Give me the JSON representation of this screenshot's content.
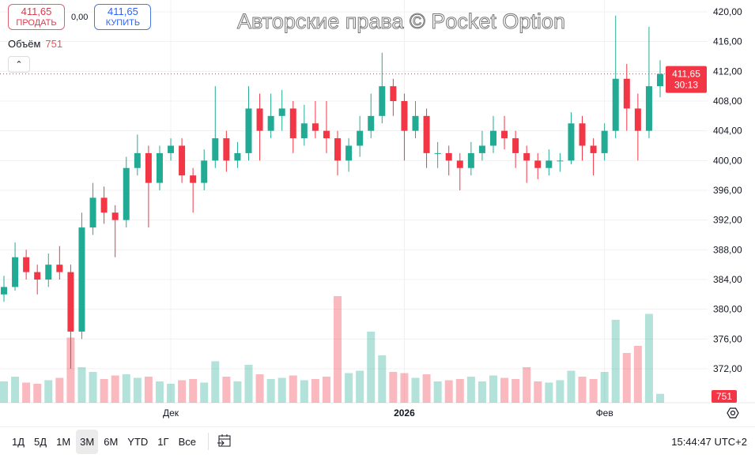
{
  "legend": {
    "sell_price": "411,65",
    "sell_label": "ПРОДАТЬ",
    "spread": "0,00",
    "buy_price": "411,65",
    "buy_label": "КУПИТЬ",
    "volume_label": "Объём",
    "volume_value": "751"
  },
  "colors": {
    "up": "#22ab94",
    "down": "#f23645",
    "price_line": "#f23645"
  },
  "icons": {
    "collapse": "chevron-up-icon",
    "settings": "hexagon-settings-icon",
    "goto_date": "calendar-arrow-icon"
  },
  "toolbar": {
    "timeframes": [
      "1Д",
      "5Д",
      "1М",
      "3М",
      "6М",
      "YTD",
      "1Г",
      "Все"
    ],
    "active": "3М",
    "timezone": "15:44:47 UTC+2"
  },
  "watermark": "Авторские права © Pocket Option",
  "chart_data": {
    "type": "candlestick",
    "ylim": [
      370,
      421
    ],
    "y_ticks": [
      "420,00",
      "416,00",
      "412,00",
      "408,00",
      "404,00",
      "400,00",
      "396,00",
      "392,00",
      "388,00",
      "384,00",
      "380,00",
      "376,00",
      "372,00"
    ],
    "y_tick_values": [
      420,
      416,
      412,
      408,
      404,
      400,
      396,
      392,
      388,
      384,
      380,
      376,
      372
    ],
    "x_labels": [
      {
        "label": "Дек",
        "index": 15
      },
      {
        "label": "2026",
        "index": 36
      },
      {
        "label": "Фев",
        "index": 54
      }
    ],
    "last_price": "411,65",
    "last_price_value": 411.65,
    "countdown": "30:13",
    "last_volume": "751",
    "candles": [
      [
        382,
        384.5,
        381,
        383,
        1800
      ],
      [
        383,
        389,
        382.5,
        387,
        2200
      ],
      [
        387,
        388,
        384,
        385,
        1700
      ],
      [
        385,
        386,
        382,
        384,
        1600
      ],
      [
        384,
        387.5,
        383,
        386,
        1900
      ],
      [
        386,
        388.5,
        384,
        385,
        2100
      ],
      [
        385,
        386,
        372,
        377,
        5500
      ],
      [
        377,
        393,
        376,
        391,
        3000
      ],
      [
        391,
        397,
        390,
        395,
        2600
      ],
      [
        395,
        396.5,
        391.5,
        393,
        2000
      ],
      [
        393,
        394,
        387,
        392,
        2300
      ],
      [
        392,
        400.5,
        391,
        399,
        2400
      ],
      [
        399,
        403.5,
        398,
        401,
        2100
      ],
      [
        401,
        402,
        391,
        397,
        2200
      ],
      [
        397,
        402,
        396,
        401,
        1800
      ],
      [
        401,
        403,
        400,
        402,
        1600
      ],
      [
        402,
        403,
        397,
        398,
        1900
      ],
      [
        398,
        399,
        393,
        397,
        2000
      ],
      [
        397,
        401.5,
        396,
        400,
        1700
      ],
      [
        400,
        410,
        399,
        403,
        3500
      ],
      [
        403,
        404,
        398.5,
        400,
        2200
      ],
      [
        400,
        402.5,
        399,
        401,
        1800
      ],
      [
        401,
        410,
        400,
        407,
        3200
      ],
      [
        407,
        409,
        400,
        404,
        2400
      ],
      [
        404,
        409,
        403,
        406,
        2000
      ],
      [
        406,
        409.5,
        404,
        407,
        2100
      ],
      [
        407,
        408,
        401,
        403,
        2300
      ],
      [
        403,
        407.5,
        402,
        405,
        1900
      ],
      [
        405,
        408,
        403,
        404,
        2000
      ],
      [
        404,
        408,
        401,
        403,
        2200
      ],
      [
        403,
        404,
        398,
        400,
        9000
      ],
      [
        400,
        403,
        398.5,
        402,
        2500
      ],
      [
        402,
        406,
        400.5,
        404,
        2700
      ],
      [
        404,
        409,
        403,
        406,
        6000
      ],
      [
        406,
        414.5,
        405,
        410,
        4000
      ],
      [
        410,
        411,
        406,
        408,
        2600
      ],
      [
        408,
        409,
        400,
        404,
        2500
      ],
      [
        404,
        408,
        403,
        406,
        2100
      ],
      [
        406,
        407,
        399,
        401,
        2400
      ],
      [
        401,
        402.5,
        399,
        401,
        1800
      ],
      [
        401,
        402,
        398,
        400,
        1900
      ],
      [
        400,
        401,
        396,
        399,
        2000
      ],
      [
        399,
        402.5,
        398,
        401,
        2200
      ],
      [
        401,
        404,
        400,
        402,
        1800
      ],
      [
        402,
        406,
        401,
        404,
        2300
      ],
      [
        404,
        406,
        401.5,
        403,
        2100
      ],
      [
        403,
        404,
        399,
        401,
        2000
      ],
      [
        401,
        402,
        397,
        400,
        3000
      ],
      [
        400,
        401,
        397.5,
        399,
        1800
      ],
      [
        399,
        401.5,
        398,
        400,
        1700
      ],
      [
        400,
        401,
        398.5,
        400,
        1900
      ],
      [
        400,
        406.5,
        399.5,
        405,
        2700
      ],
      [
        405,
        406,
        400,
        402,
        2200
      ],
      [
        402,
        403,
        398,
        401,
        2000
      ],
      [
        401,
        405,
        400,
        404,
        2600
      ],
      [
        404,
        419.5,
        403,
        411,
        7000
      ],
      [
        411,
        413,
        404,
        407,
        4200
      ],
      [
        407,
        409,
        400,
        404,
        4800
      ],
      [
        404,
        418,
        403,
        410,
        7500
      ],
      [
        410,
        413.5,
        408.5,
        411.65,
        751
      ]
    ]
  }
}
